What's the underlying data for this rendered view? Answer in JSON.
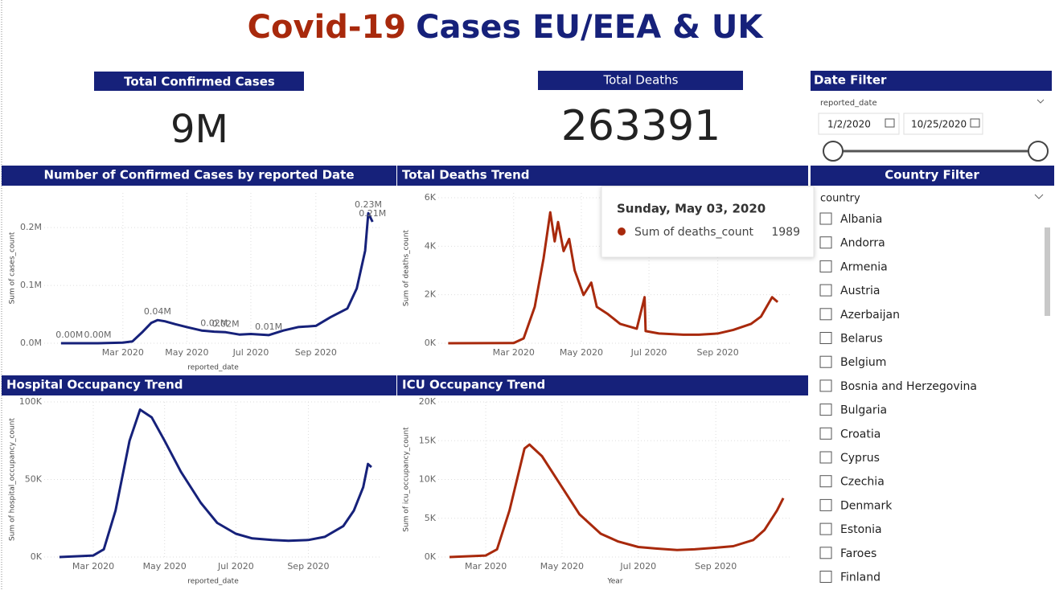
{
  "header": {
    "title_part1": "Covid-19",
    "title_part2": "Cases EU/EEA & UK"
  },
  "cards": [
    {
      "label": "Total Confirmed Cases",
      "value": "9M"
    },
    {
      "label": "Total Deaths",
      "value": "263391"
    }
  ],
  "date_filter": {
    "title": "Date Filter",
    "field": "reported_date",
    "start": "1/2/2020",
    "end": "10/25/2020"
  },
  "country_filter": {
    "title": "Country Filter",
    "field": "country",
    "countries": [
      "Albania",
      "Andorra",
      "Armenia",
      "Austria",
      "Azerbaijan",
      "Belarus",
      "Belgium",
      "Bosnia and Herzegovina",
      "Bulgaria",
      "Croatia",
      "Cyprus",
      "Czechia",
      "Denmark",
      "Estonia",
      "Faroes",
      "Finland"
    ]
  },
  "chart_data": [
    {
      "type": "line",
      "title": "Number of Confirmed Cases by reported Date",
      "x_label": "reported_date",
      "y_label": "Sum of cases_count",
      "color": "#16217a",
      "x": [
        "2020-01-02",
        "2020-01-10",
        "2020-02-06",
        "2020-03-01",
        "2020-03-10",
        "2020-03-20",
        "2020-03-28",
        "2020-04-03",
        "2020-04-10",
        "2020-04-20",
        "2020-05-01",
        "2020-05-15",
        "2020-05-27",
        "2020-06-07",
        "2020-06-20",
        "2020-07-01",
        "2020-07-18",
        "2020-08-01",
        "2020-08-15",
        "2020-09-01",
        "2020-09-15",
        "2020-10-01",
        "2020-10-10",
        "2020-10-18",
        "2020-10-21",
        "2020-10-25"
      ],
      "values": [
        0,
        0,
        0,
        1000,
        3000,
        20000,
        35000,
        40000,
        38000,
        33000,
        28000,
        22000,
        20000,
        19000,
        15000,
        16000,
        14000,
        22000,
        28000,
        30000,
        45000,
        60000,
        95000,
        160000,
        225000,
        210000
      ],
      "value_labels": [
        null,
        "0.00M",
        "0.00M",
        null,
        null,
        null,
        null,
        "0.04M",
        null,
        null,
        null,
        null,
        "0.02M",
        "0.02M",
        null,
        null,
        "0.01M",
        null,
        null,
        null,
        null,
        null,
        null,
        null,
        "0.23M",
        "0.21M"
      ],
      "xlim": [
        "2019-12-17",
        "2020-11-03"
      ],
      "xticks": [
        {
          "value": "2020-03-01",
          "label": "Mar 2020"
        },
        {
          "value": "2020-05-01",
          "label": "May 2020"
        },
        {
          "value": "2020-07-01",
          "label": "Jul 2020"
        },
        {
          "value": "2020-09-01",
          "label": "Sep 2020"
        }
      ],
      "ylim": [
        0,
        260000
      ],
      "yticks": [
        {
          "value": 0,
          "label": "0.0M"
        },
        {
          "value": 100000,
          "label": "0.1M"
        },
        {
          "value": 200000,
          "label": "0.2M"
        }
      ],
      "grid": true
    },
    {
      "type": "line",
      "title": "Total Deaths Trend",
      "y_label": "Sum of deaths_count",
      "color": "#a8290c",
      "x": [
        "2020-01-02",
        "2020-03-01",
        "2020-03-10",
        "2020-03-20",
        "2020-03-28",
        "2020-04-03",
        "2020-04-07",
        "2020-04-10",
        "2020-04-15",
        "2020-04-20",
        "2020-04-25",
        "2020-05-03",
        "2020-05-10",
        "2020-05-15",
        "2020-05-25",
        "2020-06-05",
        "2020-06-20",
        "2020-06-27",
        "2020-06-28",
        "2020-07-10",
        "2020-08-01",
        "2020-08-15",
        "2020-09-01",
        "2020-09-15",
        "2020-10-01",
        "2020-10-10",
        "2020-10-20",
        "2020-10-25"
      ],
      "values": [
        0,
        10,
        200,
        1500,
        3500,
        5400,
        4200,
        5000,
        3800,
        4300,
        3000,
        1989,
        2500,
        1500,
        1200,
        800,
        600,
        1900,
        500,
        400,
        350,
        350,
        400,
        550,
        800,
        1100,
        1900,
        1700
      ],
      "xlim": [
        "2019-12-24",
        "2020-11-07"
      ],
      "xticks": [
        {
          "value": "2020-03-01",
          "label": "Mar 2020"
        },
        {
          "value": "2020-05-01",
          "label": "May 2020"
        },
        {
          "value": "2020-07-01",
          "label": "Jul 2020"
        },
        {
          "value": "2020-09-01",
          "label": "Sep 2020"
        }
      ],
      "ylim": [
        0,
        6200
      ],
      "yticks": [
        {
          "value": 0,
          "label": "0K"
        },
        {
          "value": 2000,
          "label": "2K"
        },
        {
          "value": 4000,
          "label": "4K"
        },
        {
          "value": 6000,
          "label": "6K"
        }
      ],
      "grid": true,
      "tooltip": {
        "title": "Sunday, May 03, 2020",
        "label": "Sum of deaths_count",
        "value": 1989
      }
    },
    {
      "type": "line",
      "title": "Hospital Occupancy Trend",
      "x_label": "reported_date",
      "y_label": "Sum of hospital_occupancy_count",
      "color": "#16217a",
      "x": [
        "2020-02-01",
        "2020-03-01",
        "2020-03-10",
        "2020-03-20",
        "2020-04-01",
        "2020-04-10",
        "2020-04-20",
        "2020-05-01",
        "2020-05-15",
        "2020-06-01",
        "2020-06-15",
        "2020-07-01",
        "2020-07-15",
        "2020-08-01",
        "2020-08-15",
        "2020-09-01",
        "2020-09-15",
        "2020-10-01",
        "2020-10-10",
        "2020-10-18",
        "2020-10-22",
        "2020-10-25"
      ],
      "values": [
        0,
        1000,
        5000,
        30000,
        75000,
        95000,
        90000,
        75000,
        55000,
        35000,
        22000,
        15000,
        12000,
        11000,
        10500,
        11000,
        13000,
        20000,
        30000,
        45000,
        60000,
        58000
      ],
      "xlim": [
        "2020-01-19",
        "2020-11-03"
      ],
      "xticks": [
        {
          "value": "2020-03-01",
          "label": "Mar 2020"
        },
        {
          "value": "2020-05-01",
          "label": "May 2020"
        },
        {
          "value": "2020-07-01",
          "label": "Jul 2020"
        },
        {
          "value": "2020-09-01",
          "label": "Sep 2020"
        }
      ],
      "ylim": [
        0,
        100000
      ],
      "yticks": [
        {
          "value": 0,
          "label": "0K"
        },
        {
          "value": 50000,
          "label": "50K"
        },
        {
          "value": 100000,
          "label": "100K"
        }
      ],
      "grid": true
    },
    {
      "type": "line",
      "title": "ICU Occupancy Trend",
      "x_label": "Year",
      "y_label": "Sum of icu_occupancy_count",
      "color": "#a8290c",
      "x": [
        "2020-02-01",
        "2020-03-01",
        "2020-03-10",
        "2020-03-20",
        "2020-04-01",
        "2020-04-05",
        "2020-04-15",
        "2020-05-01",
        "2020-05-15",
        "2020-06-01",
        "2020-06-15",
        "2020-07-01",
        "2020-07-15",
        "2020-08-01",
        "2020-08-15",
        "2020-09-01",
        "2020-09-15",
        "2020-10-01",
        "2020-10-10",
        "2020-10-20",
        "2020-10-25"
      ],
      "values": [
        0,
        200,
        1000,
        6000,
        14000,
        14500,
        13000,
        9000,
        5500,
        3000,
        2000,
        1300,
        1100,
        900,
        1000,
        1200,
        1400,
        2200,
        3500,
        6000,
        7600
      ],
      "xlim": [
        "2020-01-23",
        "2020-11-01"
      ],
      "xticks": [
        {
          "value": "2020-03-01",
          "label": "Mar 2020"
        },
        {
          "value": "2020-05-01",
          "label": "May 2020"
        },
        {
          "value": "2020-07-01",
          "label": "Jul 2020"
        },
        {
          "value": "2020-09-01",
          "label": "Sep 2020"
        }
      ],
      "ylim": [
        0,
        20000
      ],
      "yticks": [
        {
          "value": 0,
          "label": "0K"
        },
        {
          "value": 5000,
          "label": "5K"
        },
        {
          "value": 10000,
          "label": "10K"
        },
        {
          "value": 15000,
          "label": "15K"
        },
        {
          "value": 20000,
          "label": "20K"
        }
      ],
      "grid": true
    }
  ]
}
